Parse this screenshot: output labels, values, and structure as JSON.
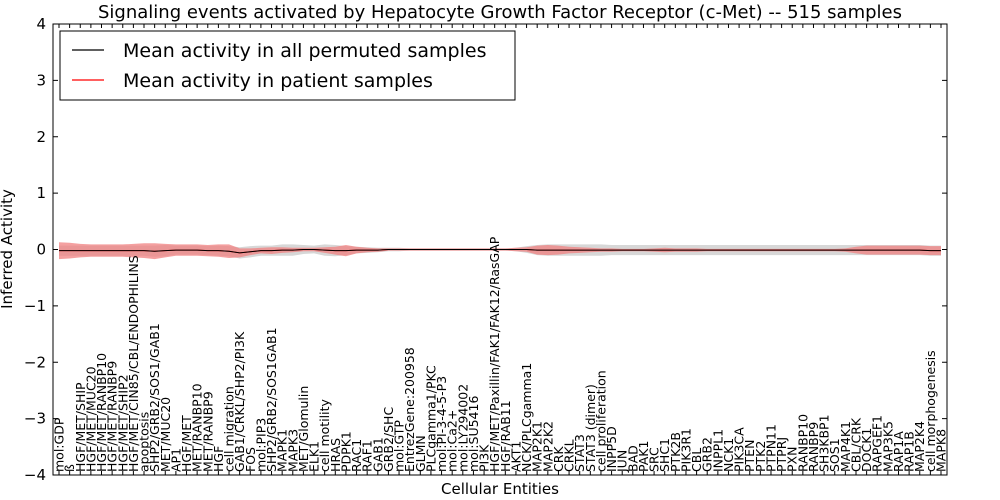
{
  "chart_data": {
    "type": "line",
    "title": "Signaling events activated by Hepatocyte Growth Factor Receptor (c-Met) -- 515 samples",
    "xlabel": "Cellular Entities",
    "ylabel": "Inferred Activity",
    "ylim": [
      -4,
      4
    ],
    "yticks": [
      -4,
      -3,
      -2,
      -1,
      0,
      1,
      2,
      3,
      4
    ],
    "ytick_labels": [
      "−4",
      "−3",
      "−2",
      "−1",
      "0",
      "1",
      "2",
      "3",
      "4"
    ],
    "legend_position": "top-left",
    "categories": [
      "mol:GDP",
      "ß",
      "HGF/MET/SHIP",
      "HGF/MET/MUC20",
      "HGF/MET/RANBP10",
      "HGF/MET/RANBP9",
      "HGF/MET/SHIP2",
      "HGF/MET/CIN85/CBL/ENDOPHILINS",
      "apoptosis",
      "SHP2/GRB2/SOS1/GAB1",
      "MET/MUC20",
      "AP1",
      "HGF/MET",
      "MET/RANBP10",
      "MET/RANBP9",
      "HGF",
      "cell migration",
      "GAB1/CRKL/SHP2/PI3K",
      "FOS",
      "mol:PIP3",
      "SHP2/GRB2/SOS1GAB1",
      "MAPK1",
      "MAPK3",
      "MET/Glomulin",
      "ELK1",
      "cell motility",
      "HRAS",
      "PDPK1",
      "RAC1",
      "RAF1",
      "GAB1",
      "GRB2/SHC",
      "mol:GTP",
      "EntrezGene:200958",
      "GLMN",
      "PLCgamma1/PKC",
      "mol:PI-3-4-5-P3",
      "mol:Ca2+",
      "mol:LY294002",
      "mol:SU5416",
      "PI3K",
      "HGF/MET/Paxillin/FAK1/FAK12/RasGAP",
      "HGF/RAB11",
      "AKT1",
      "NCK/PLCgamma1",
      "MAP2K1",
      "MAP2K2",
      "CRK",
      "CRKL",
      "STAT3",
      "STAT3 (dimer)",
      "cell proliferation",
      "INPP5D",
      "JUN",
      "BAD",
      "PAK1",
      "SRC",
      "SHC1",
      "PTK2B",
      "PIK3R1",
      "CBL",
      "GRB2",
      "INPPL1",
      "NCK1",
      "PIK3CA",
      "PTEN",
      "PTK2",
      "PTPN11",
      "PTPRJ",
      "PXN",
      "RANBP10",
      "RANBP9",
      "SH3KBP1",
      "SOS1",
      "MAP4K1",
      "CBL/CRK",
      "DOCK1",
      "RAPGEF1",
      "MAP3K5",
      "RAP1A",
      "RAP1B",
      "MAP2K4",
      "cell morphogenesis",
      "MAPK8"
    ],
    "series": [
      {
        "name": "Mean activity in all permuted samples",
        "color": "#000000",
        "values": [
          -0.02,
          -0.02,
          -0.02,
          -0.02,
          -0.02,
          -0.02,
          -0.02,
          -0.02,
          -0.02,
          -0.03,
          -0.02,
          -0.01,
          -0.01,
          -0.01,
          -0.02,
          -0.02,
          -0.03,
          -0.06,
          -0.04,
          -0.02,
          -0.02,
          -0.01,
          -0.01,
          0.0,
          0.0,
          -0.01,
          -0.02,
          -0.02,
          -0.01,
          -0.01,
          -0.01,
          0.0,
          0.0,
          0.0,
          0.0,
          0.0,
          0.0,
          0.0,
          0.0,
          0.0,
          0.0,
          0.0,
          0.0,
          0.0,
          0.0,
          -0.01,
          -0.01,
          -0.01,
          -0.01,
          -0.01,
          -0.01,
          -0.01,
          -0.01,
          -0.01,
          -0.01,
          -0.01,
          -0.01,
          -0.01,
          -0.01,
          -0.01,
          -0.01,
          -0.01,
          -0.01,
          -0.01,
          -0.01,
          -0.01,
          -0.01,
          -0.01,
          -0.01,
          -0.01,
          -0.01,
          -0.01,
          -0.01,
          -0.01,
          -0.01,
          -0.01,
          -0.01,
          -0.01,
          -0.01,
          -0.01,
          -0.01,
          -0.01,
          -0.02,
          -0.02
        ]
      },
      {
        "name": "Mean activity in patient samples",
        "color": "#ff0000",
        "values": [
          -0.02,
          -0.02,
          -0.02,
          -0.02,
          -0.02,
          -0.02,
          -0.02,
          -0.02,
          -0.02,
          -0.03,
          -0.02,
          -0.01,
          -0.01,
          -0.01,
          -0.02,
          -0.02,
          -0.03,
          -0.06,
          -0.04,
          -0.02,
          -0.02,
          -0.01,
          -0.01,
          0.0,
          0.0,
          -0.01,
          -0.02,
          -0.02,
          -0.01,
          -0.01,
          -0.01,
          0.0,
          0.0,
          0.0,
          0.0,
          0.0,
          0.0,
          0.0,
          0.0,
          0.0,
          0.0,
          0.0,
          0.0,
          0.0,
          0.0,
          -0.01,
          -0.01,
          -0.01,
          -0.01,
          -0.01,
          -0.01,
          -0.01,
          -0.01,
          -0.01,
          -0.01,
          -0.01,
          -0.01,
          -0.01,
          -0.01,
          -0.01,
          -0.01,
          -0.01,
          -0.01,
          -0.01,
          -0.01,
          -0.01,
          -0.01,
          -0.01,
          -0.01,
          -0.01,
          -0.01,
          -0.01,
          -0.01,
          -0.01,
          -0.01,
          -0.01,
          -0.01,
          -0.01,
          -0.01,
          -0.01,
          -0.01,
          -0.01,
          -0.02,
          -0.02
        ]
      }
    ],
    "bands": {
      "permuted": {
        "color": "#b0b0b0",
        "half_width": [
          0.09,
          0.09,
          0.09,
          0.09,
          0.09,
          0.09,
          0.09,
          0.09,
          0.09,
          0.1,
          0.1,
          0.08,
          0.08,
          0.08,
          0.08,
          0.09,
          0.09,
          0.1,
          0.1,
          0.09,
          0.09,
          0.1,
          0.1,
          0.08,
          0.07,
          0.1,
          0.1,
          0.08,
          0.06,
          0.05,
          0.04,
          0.03,
          0.03,
          0.02,
          0.02,
          0.02,
          0.02,
          0.02,
          0.02,
          0.02,
          0.02,
          0.02,
          0.02,
          0.03,
          0.06,
          0.09,
          0.1,
          0.1,
          0.1,
          0.1,
          0.1,
          0.1,
          0.09,
          0.09,
          0.09,
          0.09,
          0.09,
          0.09,
          0.09,
          0.09,
          0.09,
          0.09,
          0.09,
          0.09,
          0.09,
          0.09,
          0.09,
          0.09,
          0.09,
          0.09,
          0.09,
          0.09,
          0.09,
          0.09,
          0.09,
          0.09,
          0.09,
          0.09,
          0.09,
          0.09,
          0.09,
          0.09,
          0.09,
          0.09
        ]
      },
      "patient": {
        "color": "#f08080",
        "half_width": [
          0.15,
          0.14,
          0.12,
          0.11,
          0.11,
          0.11,
          0.11,
          0.12,
          0.13,
          0.14,
          0.12,
          0.1,
          0.1,
          0.1,
          0.1,
          0.11,
          0.12,
          0.08,
          0.06,
          0.05,
          0.06,
          0.05,
          0.04,
          0.03,
          0.03,
          0.05,
          0.07,
          0.1,
          0.06,
          0.04,
          0.03,
          0.02,
          0.02,
          0.02,
          0.02,
          0.02,
          0.02,
          0.02,
          0.02,
          0.02,
          0.02,
          0.02,
          0.02,
          0.03,
          0.04,
          0.08,
          0.09,
          0.08,
          0.06,
          0.05,
          0.04,
          0.03,
          0.03,
          0.02,
          0.02,
          0.02,
          0.03,
          0.04,
          0.03,
          0.03,
          0.03,
          0.02,
          0.02,
          0.02,
          0.02,
          0.02,
          0.02,
          0.02,
          0.02,
          0.02,
          0.02,
          0.02,
          0.02,
          0.02,
          0.03,
          0.06,
          0.08,
          0.08,
          0.08,
          0.08,
          0.08,
          0.08,
          0.08,
          0.08
        ]
      }
    }
  }
}
